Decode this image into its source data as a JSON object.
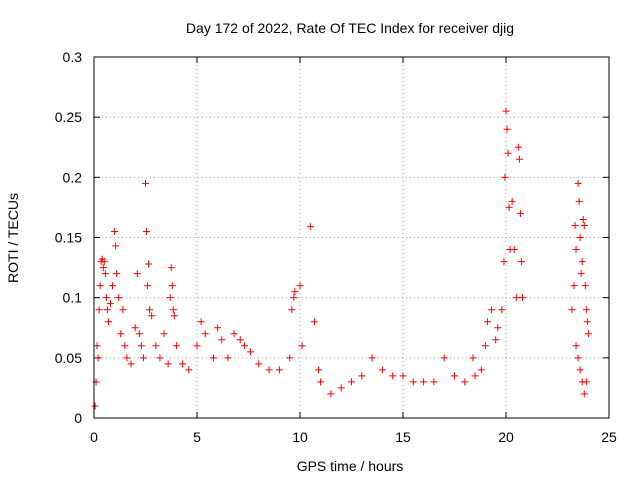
{
  "chart_data": {
    "type": "scatter",
    "title": "Day 172 of 2022, Rate Of TEC Index for receiver djig",
    "xlabel": "GPS time / hours",
    "ylabel": "ROTI / TECUs",
    "xlim": [
      0,
      25
    ],
    "ylim": [
      0,
      0.3
    ],
    "xticks": [
      "0",
      "5",
      "10",
      "15",
      "20",
      "25"
    ],
    "yticks": [
      "0",
      "0.05",
      "0.1",
      "0.15",
      "0.2",
      "0.25",
      "0.3"
    ],
    "grid": true,
    "marker": "+",
    "color": "#ff0000",
    "series": [
      {
        "name": "ROTI",
        "points": [
          [
            0.05,
            0.01
          ],
          [
            0.1,
            0.03
          ],
          [
            0.15,
            0.06
          ],
          [
            0.2,
            0.05
          ],
          [
            0.25,
            0.09
          ],
          [
            0.3,
            0.11
          ],
          [
            0.35,
            0.13
          ],
          [
            0.4,
            0.132
          ],
          [
            0.45,
            0.125
          ],
          [
            0.5,
            0.13
          ],
          [
            0.55,
            0.12
          ],
          [
            0.6,
            0.1
          ],
          [
            0.65,
            0.09
          ],
          [
            0.7,
            0.08
          ],
          [
            0.8,
            0.095
          ],
          [
            0.9,
            0.11
          ],
          [
            1.0,
            0.155
          ],
          [
            1.05,
            0.143
          ],
          [
            1.1,
            0.12
          ],
          [
            1.2,
            0.1
          ],
          [
            1.3,
            0.07
          ],
          [
            1.4,
            0.09
          ],
          [
            1.5,
            0.06
          ],
          [
            1.6,
            0.05
          ],
          [
            1.8,
            0.045
          ],
          [
            2.0,
            0.075
          ],
          [
            2.1,
            0.12
          ],
          [
            2.2,
            0.07
          ],
          [
            2.3,
            0.06
          ],
          [
            2.4,
            0.05
          ],
          [
            2.5,
            0.195
          ],
          [
            2.55,
            0.155
          ],
          [
            2.6,
            0.11
          ],
          [
            2.65,
            0.128
          ],
          [
            2.7,
            0.09
          ],
          [
            2.8,
            0.085
          ],
          [
            3.0,
            0.06
          ],
          [
            3.2,
            0.05
          ],
          [
            3.4,
            0.07
          ],
          [
            3.6,
            0.045
          ],
          [
            3.7,
            0.1
          ],
          [
            3.75,
            0.125
          ],
          [
            3.8,
            0.11
          ],
          [
            3.85,
            0.09
          ],
          [
            3.9,
            0.085
          ],
          [
            4.0,
            0.06
          ],
          [
            4.3,
            0.045
          ],
          [
            4.6,
            0.04
          ],
          [
            5.0,
            0.06
          ],
          [
            5.2,
            0.08
          ],
          [
            5.4,
            0.07
          ],
          [
            5.8,
            0.05
          ],
          [
            6.0,
            0.075
          ],
          [
            6.2,
            0.065
          ],
          [
            6.5,
            0.05
          ],
          [
            6.8,
            0.07
          ],
          [
            7.1,
            0.065
          ],
          [
            7.3,
            0.06
          ],
          [
            7.6,
            0.055
          ],
          [
            8.0,
            0.045
          ],
          [
            8.5,
            0.04
          ],
          [
            9.0,
            0.04
          ],
          [
            9.5,
            0.05
          ],
          [
            9.6,
            0.09
          ],
          [
            9.7,
            0.1
          ],
          [
            9.75,
            0.105
          ],
          [
            10.0,
            0.11
          ],
          [
            10.1,
            0.06
          ],
          [
            10.5,
            0.159
          ],
          [
            10.7,
            0.08
          ],
          [
            10.9,
            0.04
          ],
          [
            11.0,
            0.03
          ],
          [
            11.5,
            0.02
          ],
          [
            12.0,
            0.025
          ],
          [
            12.5,
            0.03
          ],
          [
            13.0,
            0.035
          ],
          [
            13.5,
            0.05
          ],
          [
            14.0,
            0.04
          ],
          [
            14.5,
            0.035
          ],
          [
            15.0,
            0.035
          ],
          [
            15.5,
            0.03
          ],
          [
            16.0,
            0.03
          ],
          [
            16.5,
            0.03
          ],
          [
            17.0,
            0.05
          ],
          [
            17.5,
            0.035
          ],
          [
            18.0,
            0.03
          ],
          [
            18.4,
            0.05
          ],
          [
            18.5,
            0.035
          ],
          [
            18.8,
            0.04
          ],
          [
            19.0,
            0.06
          ],
          [
            19.1,
            0.08
          ],
          [
            19.3,
            0.09
          ],
          [
            19.5,
            0.065
          ],
          [
            19.6,
            0.075
          ],
          [
            19.8,
            0.09
          ],
          [
            19.9,
            0.13
          ],
          [
            19.95,
            0.2
          ],
          [
            20.0,
            0.255
          ],
          [
            20.05,
            0.24
          ],
          [
            20.1,
            0.22
          ],
          [
            20.15,
            0.175
          ],
          [
            20.2,
            0.14
          ],
          [
            20.3,
            0.18
          ],
          [
            20.4,
            0.14
          ],
          [
            20.5,
            0.1
          ],
          [
            20.6,
            0.225
          ],
          [
            20.65,
            0.215
          ],
          [
            20.7,
            0.17
          ],
          [
            20.75,
            0.13
          ],
          [
            20.8,
            0.1
          ],
          [
            23.2,
            0.09
          ],
          [
            23.3,
            0.11
          ],
          [
            23.35,
            0.16
          ],
          [
            23.4,
            0.14
          ],
          [
            23.5,
            0.195
          ],
          [
            23.55,
            0.18
          ],
          [
            23.6,
            0.15
          ],
          [
            23.65,
            0.12
          ],
          [
            23.7,
            0.13
          ],
          [
            23.75,
            0.165
          ],
          [
            23.8,
            0.16
          ],
          [
            23.85,
            0.11
          ],
          [
            23.9,
            0.09
          ],
          [
            23.95,
            0.08
          ],
          [
            24.0,
            0.07
          ],
          [
            23.4,
            0.06
          ],
          [
            23.5,
            0.05
          ],
          [
            23.6,
            0.04
          ],
          [
            23.7,
            0.03
          ],
          [
            23.8,
            0.02
          ],
          [
            23.9,
            0.03
          ]
        ]
      }
    ]
  }
}
